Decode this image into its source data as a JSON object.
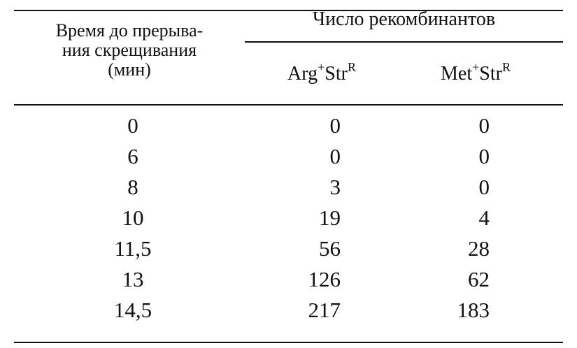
{
  "table": {
    "header": {
      "first_column": [
        "Время до прерыва-",
        "ния скрещивания",
        "(мин)"
      ],
      "group": "Число рекомбинантов",
      "columns": [
        [
          {
            "text": "Arg"
          },
          {
            "sup": "+"
          },
          {
            "text": "Str"
          },
          {
            "sup": "R"
          }
        ],
        [
          {
            "text": "Met"
          },
          {
            "sup": "+"
          },
          {
            "text": "Str"
          },
          {
            "sup": "R"
          }
        ]
      ]
    },
    "rows": [
      [
        0,
        0,
        0
      ],
      [
        6,
        0,
        0
      ],
      [
        8,
        3,
        0
      ],
      [
        10,
        19,
        4
      ],
      [
        "11,5",
        56,
        28
      ],
      [
        13,
        126,
        62
      ],
      [
        "14,5",
        217,
        183
      ]
    ]
  }
}
